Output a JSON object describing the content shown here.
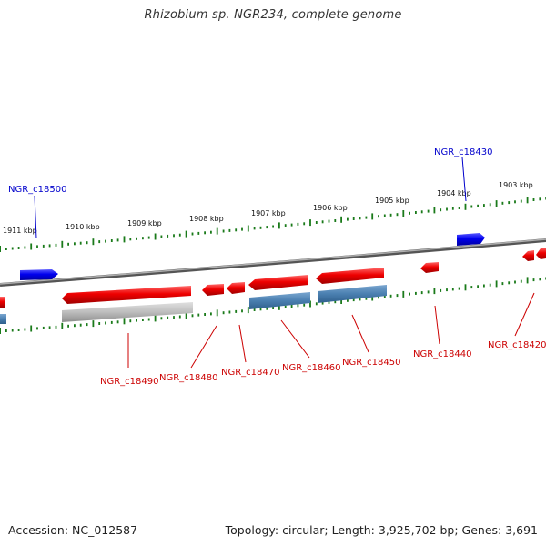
{
  "title": "Rhizobium sp. NGR234, complete genome",
  "footer": {
    "accession": "Accession: NC_012587",
    "summary": "Topology: circular; Length: 3,925,702 bp; Genes: 3,691"
  },
  "colors": {
    "forward_gene": "#0000ee",
    "reverse_gene": "#ee0000",
    "cds_steel": "#4a7fb0",
    "cds_grey": "#bdbdbd",
    "backbone": "#808080",
    "ticks": "#1a7a1a",
    "label_blue": "#0000cc",
    "label_red": "#cc0000"
  },
  "scale_labels": [
    "1911 kbp",
    "1910 kbp",
    "1909 kbp",
    "1908 kbp",
    "1907 kbp",
    "1906 kbp",
    "1905 kbp",
    "1904 kbp",
    "1903 kbp"
  ],
  "genes_top": [
    {
      "label": "NGR_c18500"
    },
    {
      "label": "NGR_c18430"
    }
  ],
  "genes_bottom": [
    {
      "label": "NGR_c18490"
    },
    {
      "label": "NGR_c18480"
    },
    {
      "label": "NGR_c18470"
    },
    {
      "label": "NGR_c18460"
    },
    {
      "label": "NGR_c18450"
    },
    {
      "label": "NGR_c18440"
    },
    {
      "label": "NGR_c18420"
    }
  ]
}
